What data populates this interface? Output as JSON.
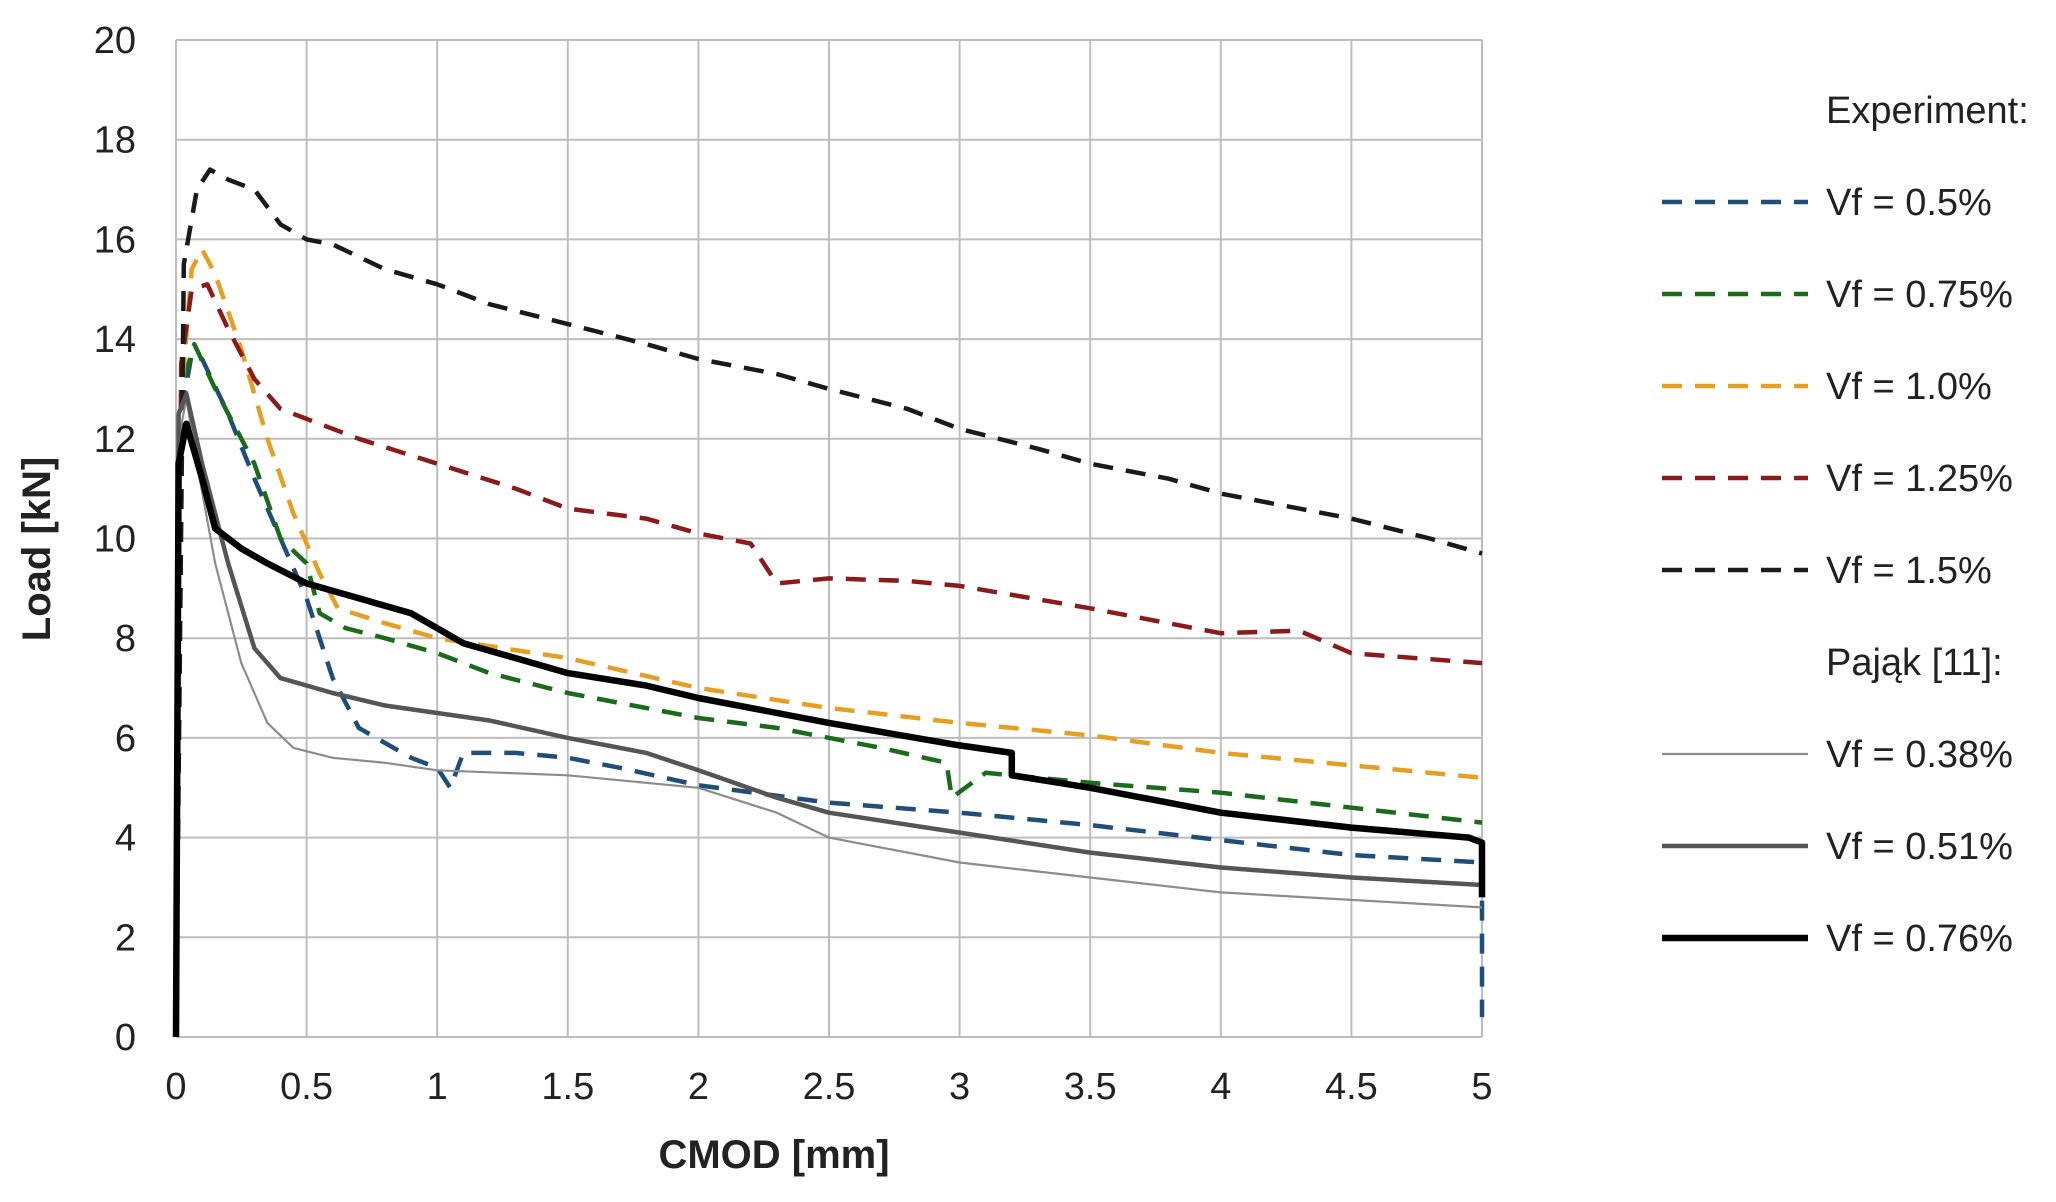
{
  "chart_data": {
    "type": "line",
    "title": "",
    "xlabel": "CMOD [mm]",
    "ylabel": "Load [kN]",
    "xlim": [
      0,
      5
    ],
    "ylim": [
      0,
      20
    ],
    "grid": true,
    "legend_position": "right",
    "x_ticks": [
      0,
      0.5,
      1,
      1.5,
      2,
      2.5,
      3,
      3.5,
      4,
      4.5,
      5
    ],
    "x_tick_labels": [
      "0",
      "0.5",
      "1",
      "1.5",
      "2",
      "2.5",
      "3",
      "3.5",
      "4",
      "4.5",
      "5"
    ],
    "y_ticks": [
      0,
      2,
      4,
      6,
      8,
      10,
      12,
      14,
      16,
      18,
      20
    ],
    "y_tick_labels": [
      "0",
      "2",
      "4",
      "6",
      "8",
      "10",
      "12",
      "14",
      "16",
      "18",
      "20"
    ],
    "legend_groups": [
      {
        "heading": "Experiment:",
        "series_indices": [
          0,
          1,
          2,
          3,
          4
        ]
      },
      {
        "heading": "Pająk [11]:",
        "series_indices": [
          5,
          6,
          7
        ]
      }
    ],
    "series": [
      {
        "name": "Vf = 0.5%",
        "color": "#1f4e79",
        "style": "dashed",
        "width": "medium",
        "points": [
          [
            0,
            0
          ],
          [
            0.02,
            12.5
          ],
          [
            0.06,
            13.7
          ],
          [
            0.1,
            13.6
          ],
          [
            0.2,
            12.5
          ],
          [
            0.3,
            11.2
          ],
          [
            0.4,
            10
          ],
          [
            0.5,
            8.8
          ],
          [
            0.6,
            7.2
          ],
          [
            0.7,
            6.2
          ],
          [
            0.8,
            5.9
          ],
          [
            0.9,
            5.6
          ],
          [
            1.0,
            5.4
          ],
          [
            1.05,
            5.0
          ],
          [
            1.1,
            5.7
          ],
          [
            1.3,
            5.7
          ],
          [
            1.5,
            5.6
          ],
          [
            1.7,
            5.4
          ],
          [
            2.0,
            5.05
          ],
          [
            2.5,
            4.7
          ],
          [
            3.0,
            4.5
          ],
          [
            3.5,
            4.25
          ],
          [
            4.0,
            3.95
          ],
          [
            4.5,
            3.65
          ],
          [
            5.0,
            3.5
          ],
          [
            5.0,
            0.4
          ]
        ]
      },
      {
        "name": "Vf = 0.75%",
        "color": "#1a6b1a",
        "style": "dashed",
        "width": "medium",
        "points": [
          [
            0,
            0
          ],
          [
            0.02,
            13.0
          ],
          [
            0.07,
            13.9
          ],
          [
            0.15,
            13.0
          ],
          [
            0.3,
            11.5
          ],
          [
            0.4,
            10.0
          ],
          [
            0.5,
            9.5
          ],
          [
            0.55,
            8.5
          ],
          [
            0.65,
            8.2
          ],
          [
            0.8,
            8.0
          ],
          [
            1.0,
            7.7
          ],
          [
            1.2,
            7.3
          ],
          [
            1.5,
            6.9
          ],
          [
            1.8,
            6.6
          ],
          [
            2.0,
            6.4
          ],
          [
            2.3,
            6.2
          ],
          [
            2.7,
            5.8
          ],
          [
            2.95,
            5.5
          ],
          [
            2.97,
            4.8
          ],
          [
            3.1,
            5.3
          ],
          [
            3.5,
            5.1
          ],
          [
            4.0,
            4.9
          ],
          [
            4.5,
            4.6
          ],
          [
            5.0,
            4.3
          ]
        ]
      },
      {
        "name": "Vf = 1.0%",
        "color": "#e5a024",
        "style": "dashed",
        "width": "medium",
        "points": [
          [
            0,
            0
          ],
          [
            0.02,
            12.8
          ],
          [
            0.06,
            15.4
          ],
          [
            0.1,
            15.8
          ],
          [
            0.15,
            15.3
          ],
          [
            0.25,
            13.8
          ],
          [
            0.35,
            12.0
          ],
          [
            0.45,
            10.5
          ],
          [
            0.55,
            9.3
          ],
          [
            0.62,
            8.6
          ],
          [
            0.8,
            8.3
          ],
          [
            1.0,
            8.0
          ],
          [
            1.5,
            7.6
          ],
          [
            2.0,
            7.0
          ],
          [
            2.5,
            6.6
          ],
          [
            3.0,
            6.3
          ],
          [
            3.5,
            6.05
          ],
          [
            4.0,
            5.7
          ],
          [
            4.5,
            5.45
          ],
          [
            5.0,
            5.2
          ]
        ]
      },
      {
        "name": "Vf = 1.25%",
        "color": "#8b1a1a",
        "style": "dashed",
        "width": "medium",
        "points": [
          [
            0,
            0
          ],
          [
            0.02,
            13.5
          ],
          [
            0.06,
            15.0
          ],
          [
            0.12,
            15.1
          ],
          [
            0.2,
            14.2
          ],
          [
            0.3,
            13.2
          ],
          [
            0.4,
            12.6
          ],
          [
            0.5,
            12.4
          ],
          [
            0.7,
            12.0
          ],
          [
            1.0,
            11.5
          ],
          [
            1.3,
            11.0
          ],
          [
            1.5,
            10.6
          ],
          [
            1.8,
            10.4
          ],
          [
            2.0,
            10.1
          ],
          [
            2.2,
            9.9
          ],
          [
            2.3,
            9.1
          ],
          [
            2.5,
            9.2
          ],
          [
            2.8,
            9.15
          ],
          [
            3.0,
            9.05
          ],
          [
            3.5,
            8.6
          ],
          [
            4.0,
            8.1
          ],
          [
            4.3,
            8.15
          ],
          [
            4.5,
            7.7
          ],
          [
            5.0,
            7.5
          ]
        ]
      },
      {
        "name": "Vf = 1.5%",
        "color": "#1a1a1a",
        "style": "dashed",
        "width": "medium",
        "points": [
          [
            0,
            0
          ],
          [
            0.03,
            15.5
          ],
          [
            0.08,
            17.0
          ],
          [
            0.13,
            17.4
          ],
          [
            0.2,
            17.2
          ],
          [
            0.3,
            17.0
          ],
          [
            0.4,
            16.3
          ],
          [
            0.5,
            16.0
          ],
          [
            0.6,
            15.9
          ],
          [
            0.8,
            15.4
          ],
          [
            1.0,
            15.1
          ],
          [
            1.2,
            14.7
          ],
          [
            1.5,
            14.3
          ],
          [
            1.8,
            13.9
          ],
          [
            2.0,
            13.6
          ],
          [
            2.3,
            13.3
          ],
          [
            2.5,
            13.0
          ],
          [
            2.8,
            12.6
          ],
          [
            3.0,
            12.2
          ],
          [
            3.3,
            11.8
          ],
          [
            3.5,
            11.5
          ],
          [
            3.8,
            11.2
          ],
          [
            4.0,
            10.9
          ],
          [
            4.3,
            10.6
          ],
          [
            4.5,
            10.4
          ],
          [
            4.8,
            10.0
          ],
          [
            5.0,
            9.7
          ]
        ]
      },
      {
        "name": "Vf = 0.38%",
        "color": "#8c8c8c",
        "style": "solid",
        "width": "thin",
        "points": [
          [
            0,
            0
          ],
          [
            0.01,
            12.0
          ],
          [
            0.04,
            12.8
          ],
          [
            0.08,
            11.5
          ],
          [
            0.15,
            9.5
          ],
          [
            0.25,
            7.5
          ],
          [
            0.35,
            6.3
          ],
          [
            0.45,
            5.8
          ],
          [
            0.6,
            5.6
          ],
          [
            0.8,
            5.5
          ],
          [
            1.0,
            5.35
          ],
          [
            1.5,
            5.25
          ],
          [
            2.0,
            5.0
          ],
          [
            2.3,
            4.5
          ],
          [
            2.5,
            4.0
          ],
          [
            3.0,
            3.5
          ],
          [
            3.5,
            3.2
          ],
          [
            4.0,
            2.9
          ],
          [
            4.5,
            2.75
          ],
          [
            5.0,
            2.6
          ]
        ]
      },
      {
        "name": "Vf = 0.51%",
        "color": "#555555",
        "style": "solid",
        "width": "medium",
        "points": [
          [
            0,
            0
          ],
          [
            0.01,
            12.5
          ],
          [
            0.04,
            12.9
          ],
          [
            0.1,
            11.5
          ],
          [
            0.2,
            9.5
          ],
          [
            0.3,
            7.8
          ],
          [
            0.4,
            7.2
          ],
          [
            0.6,
            6.9
          ],
          [
            0.8,
            6.65
          ],
          [
            1.0,
            6.5
          ],
          [
            1.2,
            6.35
          ],
          [
            1.5,
            6.0
          ],
          [
            1.8,
            5.7
          ],
          [
            2.0,
            5.35
          ],
          [
            2.3,
            4.8
          ],
          [
            2.5,
            4.5
          ],
          [
            3.0,
            4.1
          ],
          [
            3.5,
            3.7
          ],
          [
            4.0,
            3.4
          ],
          [
            4.5,
            3.2
          ],
          [
            5.0,
            3.05
          ]
        ]
      },
      {
        "name": "Vf = 0.76%",
        "color": "#000000",
        "style": "solid",
        "width": "thick",
        "points": [
          [
            0,
            0
          ],
          [
            0.01,
            11.5
          ],
          [
            0.04,
            12.3
          ],
          [
            0.1,
            11.2
          ],
          [
            0.15,
            10.2
          ],
          [
            0.25,
            9.8
          ],
          [
            0.35,
            9.5
          ],
          [
            0.5,
            9.1
          ],
          [
            0.7,
            8.8
          ],
          [
            0.9,
            8.5
          ],
          [
            1.0,
            8.2
          ],
          [
            1.1,
            7.9
          ],
          [
            1.3,
            7.6
          ],
          [
            1.5,
            7.3
          ],
          [
            1.8,
            7.05
          ],
          [
            2.0,
            6.8
          ],
          [
            2.5,
            6.3
          ],
          [
            3.0,
            5.85
          ],
          [
            3.2,
            5.7
          ],
          [
            3.2,
            5.25
          ],
          [
            3.5,
            5.0
          ],
          [
            3.8,
            4.7
          ],
          [
            4.0,
            4.5
          ],
          [
            4.5,
            4.2
          ],
          [
            4.95,
            4.0
          ],
          [
            5.0,
            3.9
          ],
          [
            5.0,
            2.8
          ]
        ]
      }
    ]
  }
}
